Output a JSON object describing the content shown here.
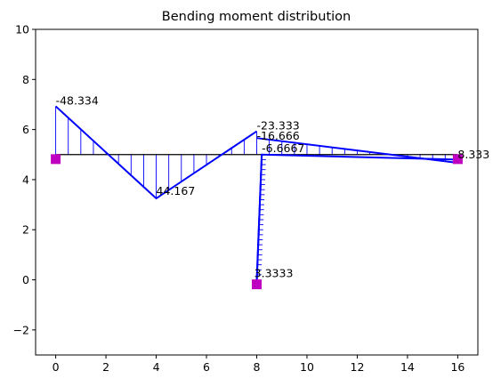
{
  "chart_data": {
    "type": "line",
    "title": "Bending moment distribution",
    "xlabel": "",
    "ylabel": "",
    "xlim": [
      -0.8,
      16.8
    ],
    "ylim": [
      -3,
      10
    ],
    "grid": false,
    "legend": "none",
    "x_ticks": [
      0,
      2,
      4,
      6,
      8,
      10,
      12,
      14,
      16
    ],
    "y_ticks": [
      -2,
      0,
      2,
      4,
      6,
      8,
      10
    ],
    "colors": {
      "moment": "#0000ff",
      "baseline": "#000000",
      "support": "#c000c0"
    },
    "baselines": [
      {
        "x": [
          0,
          16
        ],
        "y": [
          5,
          5
        ]
      },
      {
        "x": [
          8,
          8.2
        ],
        "y": [
          0,
          5
        ]
      }
    ],
    "series": [
      {
        "x": [
          0,
          4,
          8
        ],
        "y": [
          6.93,
          3.25,
          5.93
        ]
      },
      {
        "x": [
          8,
          8.2
        ],
        "y": [
          0.0,
          5.0
        ]
      },
      {
        "x": [
          8,
          8.2,
          16
        ],
        "y": [
          -0.15,
          5.0,
          4.8
        ]
      },
      {
        "x": [
          8,
          16
        ],
        "y": [
          5.66,
          4.67
        ]
      }
    ],
    "hatch_x": [
      0,
      0.5,
      1,
      1.5,
      2,
      2.5,
      3,
      3.5,
      4,
      4.5,
      5,
      5.5,
      6,
      6.5,
      7,
      7.5,
      8
    ],
    "annotations": [
      {
        "text": "-48.334",
        "x": 0.0,
        "y": 7.0
      },
      {
        "text": "44.167",
        "x": 4.0,
        "y": 3.4
      },
      {
        "text": "-23.333",
        "x": 8.0,
        "y": 6.0
      },
      {
        "text": "-16.666",
        "x": 8.0,
        "y": 5.6
      },
      {
        "text": "-6.6667",
        "x": 8.2,
        "y": 5.1
      },
      {
        "text": "3.3333",
        "x": 7.9,
        "y": 0.1
      },
      {
        "text": "8.333",
        "x": 16.0,
        "y": 4.85
      }
    ],
    "supports": [
      {
        "x": 0,
        "y": 4.82
      },
      {
        "x": 8,
        "y": -0.18
      },
      {
        "x": 16,
        "y": 4.82
      }
    ]
  }
}
